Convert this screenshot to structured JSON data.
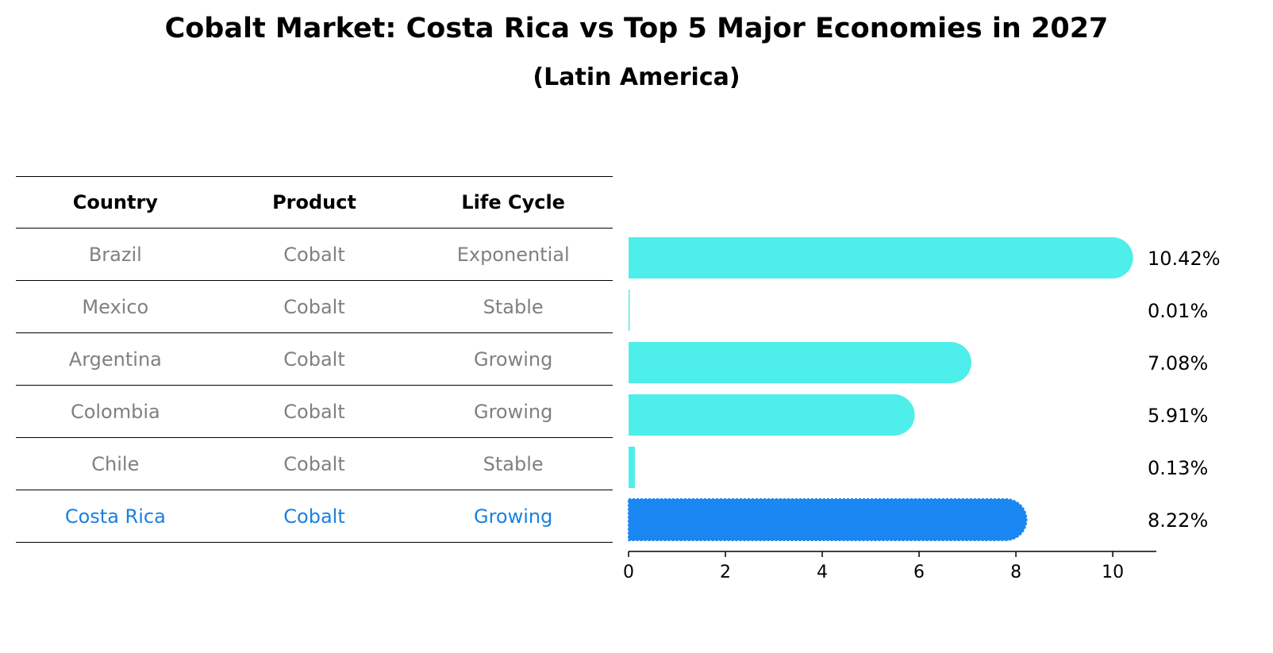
{
  "title": "Cobalt Market: Costa Rica vs Top 5 Major Economies in 2027",
  "subtitle": "(Latin America)",
  "table": {
    "headers": [
      "Country",
      "Product",
      "Life Cycle"
    ],
    "rows": [
      [
        "Brazil",
        "Cobalt",
        "Exponential"
      ],
      [
        "Mexico",
        "Cobalt",
        "Stable"
      ],
      [
        "Argentina",
        "Cobalt",
        "Growing"
      ],
      [
        "Colombia",
        "Cobalt",
        "Growing"
      ],
      [
        "Chile",
        "Cobalt",
        "Stable"
      ],
      [
        "Costa Rica",
        "Cobalt",
        "Growing"
      ]
    ]
  },
  "chart_data": {
    "type": "bar",
    "orientation": "horizontal",
    "categories": [
      "Brazil",
      "Mexico",
      "Argentina",
      "Colombia",
      "Chile",
      "Costa Rica"
    ],
    "values": [
      10.42,
      0.01,
      7.08,
      5.91,
      0.13,
      8.22
    ],
    "value_labels": [
      "10.42%",
      "0.01%",
      "7.08%",
      "5.91%",
      "0.13%",
      "8.22%"
    ],
    "highlight": "Costa Rica",
    "xlim": [
      0,
      10.9
    ],
    "xticks": [
      0,
      2,
      4,
      6,
      8,
      10
    ],
    "colors": {
      "default": "#4eeeea",
      "highlight": "#1a87f2"
    }
  },
  "colors": {
    "highlight_text": "#1a80e0",
    "muted_text": "#808080"
  }
}
